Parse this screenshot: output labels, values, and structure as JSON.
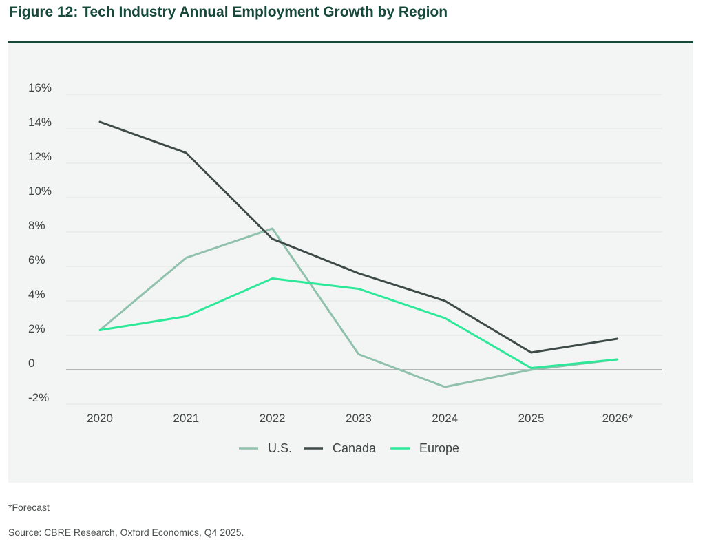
{
  "header": {
    "title": "Figure 12: Tech Industry Annual Employment Growth by Region"
  },
  "chart_data": {
    "type": "line",
    "title": "Figure 12: Tech Industry Annual Employment Growth by Region",
    "xlabel": "",
    "ylabel": "",
    "categories": [
      "2020",
      "2021",
      "2022",
      "2023",
      "2024",
      "2025",
      "2026*"
    ],
    "ylim": [
      -2,
      16
    ],
    "yticks": [
      -2,
      0,
      2,
      4,
      6,
      8,
      10,
      12,
      14,
      16
    ],
    "ytick_labels": [
      "-2%",
      "0",
      "2%",
      "4%",
      "6%",
      "8%",
      "10%",
      "12%",
      "14%",
      "16%"
    ],
    "grid": true,
    "legend_position": "bottom-center",
    "series": [
      {
        "name": "U.S.",
        "color": "#8fc1ad",
        "values": [
          2.3,
          6.5,
          8.2,
          0.9,
          -1.0,
          0.0,
          0.6
        ]
      },
      {
        "name": "Canada",
        "color": "#3e4a47",
        "values": [
          14.4,
          12.6,
          7.6,
          5.6,
          4.0,
          1.0,
          1.8
        ]
      },
      {
        "name": "Europe",
        "color": "#2ee89a",
        "values": [
          2.3,
          3.1,
          5.3,
          4.7,
          3.0,
          0.1,
          0.6
        ]
      }
    ]
  },
  "footnote": "*Forecast",
  "source": "Source: CBRE Research, Oxford Economics, Q4 2025."
}
